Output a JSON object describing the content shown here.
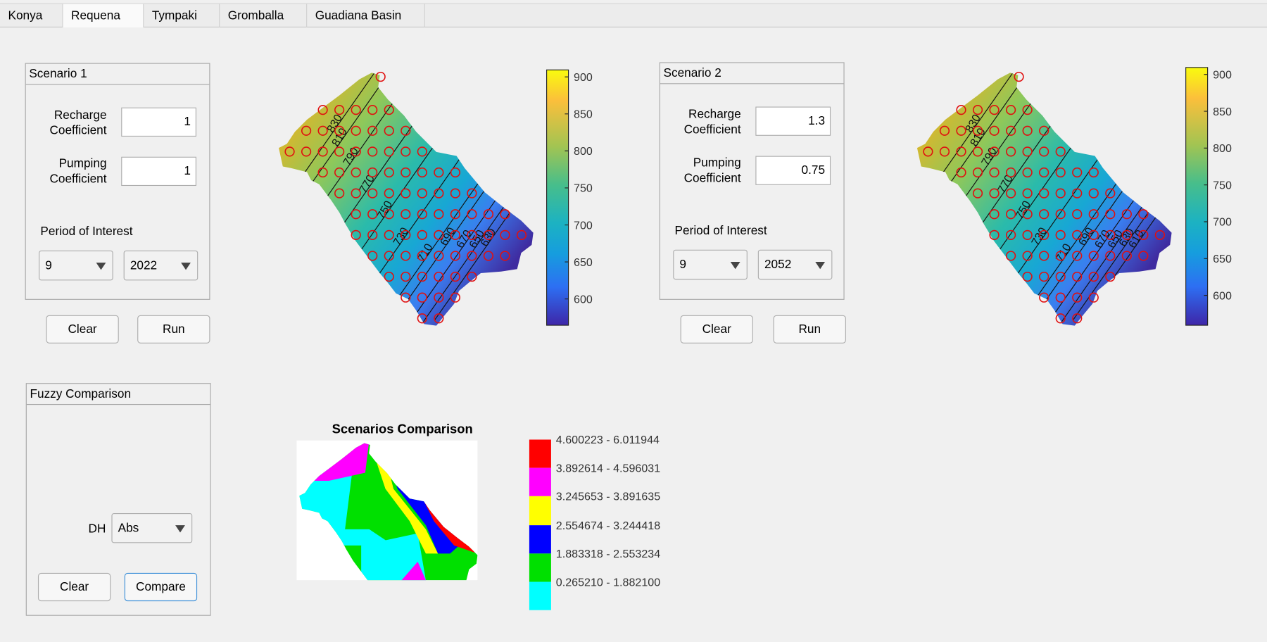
{
  "tabs": [
    "Konya",
    "Requena",
    "Tympaki",
    "Gromballa",
    "Guadiana Basin"
  ],
  "scenarios": [
    {
      "title": "Scenario 1",
      "recharge_label": "Recharge Coefficient",
      "recharge_value": "1",
      "pumping_label": "Pumping Coefficient",
      "pumping_value": "1",
      "period_label": "Period of Interest",
      "month": "9",
      "year": "2022",
      "clear_button": "Clear",
      "run_button": "Run",
      "colorbar": {
        "clim": [
          565,
          910
        ],
        "ticks": [
          600,
          650,
          700,
          750,
          800,
          850,
          900
        ]
      },
      "contour_labels": [
        830,
        810,
        790,
        770,
        750,
        730,
        710,
        690,
        670,
        650,
        630
      ]
    },
    {
      "title": "Scenario 2",
      "recharge_label": "Recharge Coefficient",
      "recharge_value": "1.3",
      "pumping_label": "Pumping Coefficient",
      "pumping_value": "0.75",
      "period_label": "Period of Interest",
      "month": "9",
      "year": "2052",
      "clear_button": "Clear",
      "run_button": "Run",
      "colorbar": {
        "clim": [
          560,
          910
        ],
        "ticks": [
          600,
          650,
          700,
          750,
          800,
          850,
          900
        ]
      },
      "contour_labels": [
        830,
        810,
        790,
        770,
        750,
        730,
        710,
        690,
        670,
        650,
        630,
        610
      ]
    }
  ],
  "fuzzy": {
    "title": "Fuzzy Comparison",
    "dh_label": "DH",
    "dh_value": "Abs",
    "clear_button": "Clear",
    "compare_button": "Compare"
  },
  "comparison": {
    "title": "Scenarios Comparison",
    "legend": [
      {
        "label": "4.600223 - 6.011944",
        "color": "#ff0000"
      },
      {
        "label": "3.892614 - 4.596031",
        "color": "#ff00ff"
      },
      {
        "label": "3.245653 - 3.891635",
        "color": "#ffff00"
      },
      {
        "label": "2.554674 - 3.244418",
        "color": "#0000ff"
      },
      {
        "label": "1.883318 - 2.553234",
        "color": "#00e000"
      },
      {
        "label": "0.265210 - 1.882100",
        "color": "#00ffff"
      }
    ]
  }
}
